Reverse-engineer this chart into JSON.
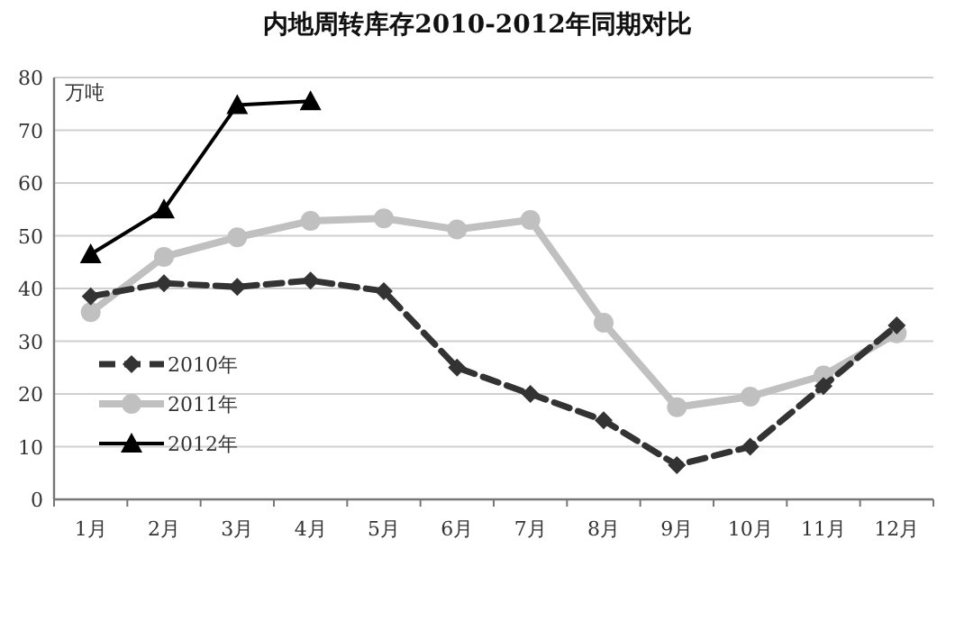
{
  "chart_data": {
    "type": "line",
    "title": "内地周转库存2010-2012年同期对比",
    "ylabel": "万吨",
    "categories": [
      "1月",
      "2月",
      "3月",
      "4月",
      "5月",
      "6月",
      "7月",
      "8月",
      "9月",
      "10月",
      "11月",
      "12月"
    ],
    "series": [
      {
        "name": "2010年",
        "color": "#333333",
        "marker": "diamond",
        "line_style": "dashed",
        "values": [
          38.5,
          41,
          40.3,
          41.5,
          39.5,
          25,
          20,
          15,
          6.5,
          10,
          21.5,
          33
        ]
      },
      {
        "name": "2011年",
        "color": "#c0c0c0",
        "marker": "circle",
        "line_style": "solid",
        "values": [
          35.5,
          46,
          49.7,
          52.8,
          53.3,
          51.2,
          53,
          33.5,
          17.5,
          19.5,
          23.5,
          31.5
        ]
      },
      {
        "name": "2012年",
        "color": "#000000",
        "marker": "triangle",
        "line_style": "solid",
        "values": [
          46.5,
          55,
          74.8,
          75.5,
          null,
          null,
          null,
          null,
          null,
          null,
          null,
          null
        ]
      }
    ],
    "ylim": [
      0,
      80
    ],
    "yticks": [
      0,
      10,
      20,
      30,
      40,
      50,
      60,
      70,
      80
    ],
    "grid": "y",
    "legend": "bottom left"
  }
}
